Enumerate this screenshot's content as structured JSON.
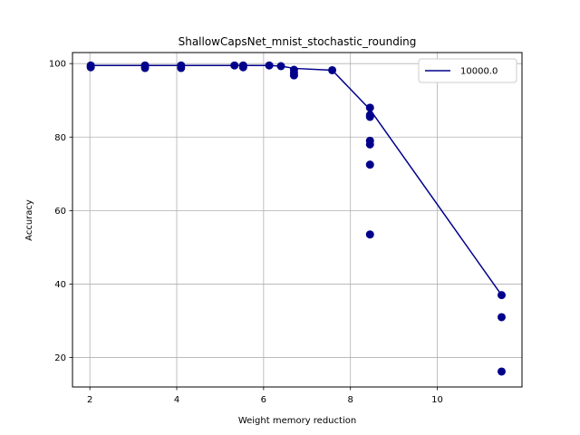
{
  "chart_data": {
    "type": "scatter",
    "title": "ShallowCapsNet_mnist_stochastic_rounding",
    "xlabel": "Weight memory reduction",
    "ylabel": "Accuracy",
    "xlim": [
      1.6,
      11.95
    ],
    "ylim": [
      12.0,
      103.0
    ],
    "xticks": [
      2,
      4,
      6,
      8,
      10
    ],
    "yticks": [
      20,
      40,
      60,
      80,
      100
    ],
    "grid": true,
    "legend_position": "top-right",
    "series": [
      {
        "name": "10000.0",
        "kind": "line",
        "color": "#00008b",
        "x": [
          2.02,
          3.27,
          4.1,
          5.33,
          5.53,
          6.13,
          6.4,
          6.7,
          7.58,
          8.45,
          11.48
        ],
        "y": [
          99.5,
          99.5,
          99.5,
          99.5,
          99.5,
          99.5,
          99.3,
          98.7,
          98.2,
          87.5,
          37.0
        ]
      },
      {
        "name": "",
        "kind": "scatter",
        "color": "#00008b",
        "x": [
          2.02,
          2.02,
          3.27,
          3.27,
          4.1,
          4.1,
          5.33,
          5.53,
          5.53,
          6.13,
          6.4,
          6.7,
          6.7,
          6.7,
          7.58,
          8.45,
          8.45,
          8.45,
          8.45,
          8.45,
          8.45,
          8.45,
          11.48,
          11.48,
          11.48
        ],
        "y": [
          99.5,
          99.0,
          99.5,
          98.8,
          99.5,
          98.8,
          99.5,
          99.5,
          99.0,
          99.5,
          99.3,
          98.3,
          97.5,
          96.8,
          98.2,
          88.0,
          86.0,
          85.5,
          79.0,
          78.0,
          72.5,
          53.5,
          37.0,
          31.0,
          16.2
        ]
      }
    ]
  }
}
